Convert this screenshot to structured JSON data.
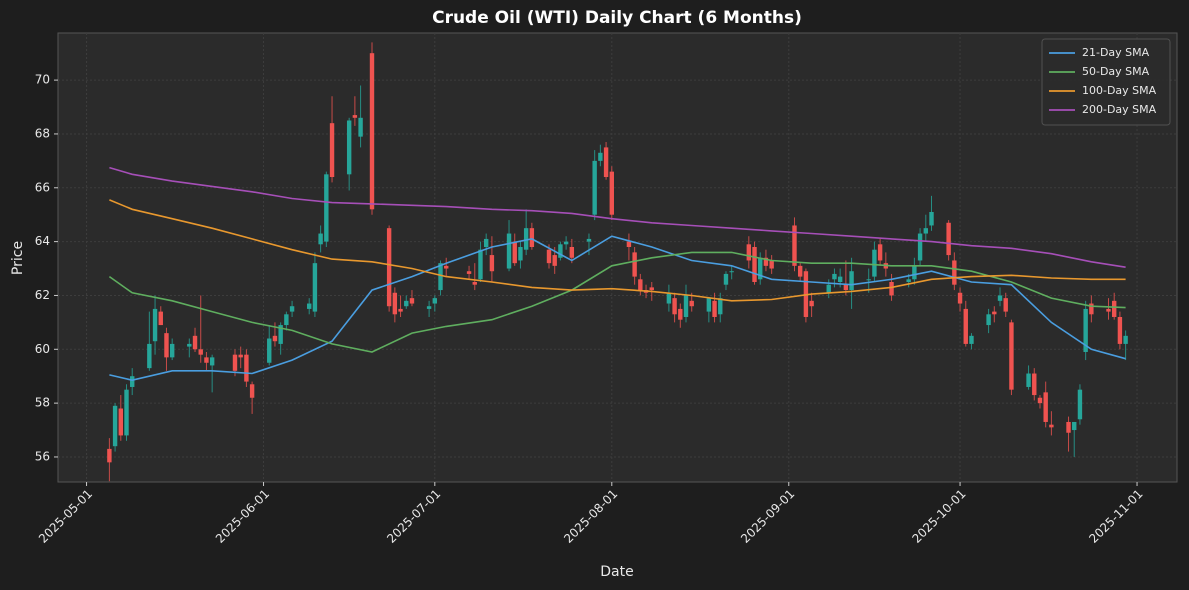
{
  "chart_data": {
    "type": "candlestick",
    "title": "Crude Oil (WTI) Daily Chart (6 Months)",
    "x_label": "Date",
    "y_label": "Price",
    "up_color": "#26a69a",
    "down_color": "#ef5350",
    "grid": true,
    "legend": "upper right",
    "xlim": [
      "2025-04-26",
      "2025-11-08"
    ],
    "xticks": [
      "2025-05-01",
      "2025-06-01",
      "2025-07-01",
      "2025-08-01",
      "2025-09-01",
      "2025-10-01",
      "2025-11-01"
    ],
    "ylim": [
      55.07,
      71.75
    ],
    "yticks": [
      56,
      58,
      60,
      62,
      64,
      66,
      68,
      70
    ],
    "candles": {
      "x": [
        "2025-05-05",
        "2025-05-06",
        "2025-05-07",
        "2025-05-08",
        "2025-05-09",
        "2025-05-12",
        "2025-05-13",
        "2025-05-14",
        "2025-05-15",
        "2025-05-16",
        "2025-05-19",
        "2025-05-20",
        "2025-05-21",
        "2025-05-22",
        "2025-05-23",
        "2025-05-27",
        "2025-05-28",
        "2025-05-29",
        "2025-05-30",
        "2025-06-02",
        "2025-06-03",
        "2025-06-04",
        "2025-06-05",
        "2025-06-06",
        "2025-06-09",
        "2025-06-10",
        "2025-06-11",
        "2025-06-12",
        "2025-06-13",
        "2025-06-16",
        "2025-06-17",
        "2025-06-18",
        "2025-06-20",
        "2025-06-23",
        "2025-06-24",
        "2025-06-25",
        "2025-06-26",
        "2025-06-27",
        "2025-06-30",
        "2025-07-01",
        "2025-07-02",
        "2025-07-03",
        "2025-07-07",
        "2025-07-08",
        "2025-07-09",
        "2025-07-10",
        "2025-07-11",
        "2025-07-14",
        "2025-07-15",
        "2025-07-16",
        "2025-07-17",
        "2025-07-18",
        "2025-07-21",
        "2025-07-22",
        "2025-07-23",
        "2025-07-24",
        "2025-07-25",
        "2025-07-28",
        "2025-07-29",
        "2025-07-30",
        "2025-07-31",
        "2025-08-01",
        "2025-08-04",
        "2025-08-05",
        "2025-08-06",
        "2025-08-07",
        "2025-08-08",
        "2025-08-11",
        "2025-08-12",
        "2025-08-13",
        "2025-08-14",
        "2025-08-15",
        "2025-08-18",
        "2025-08-19",
        "2025-08-20",
        "2025-08-21",
        "2025-08-22",
        "2025-08-25",
        "2025-08-26",
        "2025-08-27",
        "2025-08-28",
        "2025-08-29",
        "2025-09-02",
        "2025-09-03",
        "2025-09-04",
        "2025-09-05",
        "2025-09-08",
        "2025-09-09",
        "2025-09-10",
        "2025-09-11",
        "2025-09-12",
        "2025-09-15",
        "2025-09-16",
        "2025-09-17",
        "2025-09-18",
        "2025-09-19",
        "2025-09-22",
        "2025-09-23",
        "2025-09-24",
        "2025-09-25",
        "2025-09-26",
        "2025-09-29",
        "2025-09-30",
        "2025-10-01",
        "2025-10-02",
        "2025-10-03",
        "2025-10-06",
        "2025-10-07",
        "2025-10-08",
        "2025-10-09",
        "2025-10-10",
        "2025-10-13",
        "2025-10-14",
        "2025-10-15",
        "2025-10-16",
        "2025-10-17",
        "2025-10-20",
        "2025-10-21",
        "2025-10-22",
        "2025-10-23",
        "2025-10-24",
        "2025-10-27",
        "2025-10-28",
        "2025-10-29",
        "2025-10-30"
      ],
      "open": [
        56.3,
        56.4,
        57.8,
        56.8,
        58.6,
        59.3,
        60.3,
        61.4,
        60.6,
        59.7,
        60.1,
        60.5,
        60.0,
        59.7,
        59.4,
        59.8,
        59.8,
        59.8,
        58.7,
        59.5,
        60.5,
        60.2,
        60.9,
        61.4,
        61.5,
        61.4,
        63.9,
        64.0,
        68.4,
        66.5,
        68.7,
        67.9,
        71.0,
        64.5,
        62.1,
        61.5,
        61.6,
        61.9,
        61.5,
        61.7,
        62.2,
        63.1,
        62.9,
        62.5,
        62.6,
        63.8,
        63.5,
        63.0,
        64.0,
        63.3,
        63.7,
        64.5,
        63.7,
        63.5,
        63.4,
        63.9,
        63.8,
        64.0,
        65.0,
        67.0,
        67.5,
        66.6,
        64.0,
        63.6,
        62.6,
        62.2,
        62.3,
        61.7,
        61.9,
        61.5,
        61.2,
        61.8,
        61.4,
        61.8,
        61.3,
        62.4,
        62.9,
        63.9,
        63.8,
        62.6,
        63.4,
        63.3,
        64.6,
        63.1,
        62.9,
        61.8,
        62.1,
        62.6,
        62.5,
        62.4,
        62.2,
        62.6,
        62.7,
        63.9,
        63.2,
        62.5,
        62.5,
        62.6,
        63.3,
        64.3,
        64.6,
        64.7,
        63.3,
        62.1,
        61.5,
        60.2,
        60.9,
        61.4,
        61.8,
        61.9,
        61.0,
        58.6,
        59.1,
        58.2,
        58.4,
        57.2,
        57.3,
        57.0,
        57.4,
        59.9,
        61.7,
        61.5,
        61.8,
        61.2,
        60.2
      ],
      "high": [
        56.7,
        58.0,
        58.3,
        58.7,
        59.3,
        61.4,
        62.0,
        61.6,
        60.8,
        60.4,
        60.4,
        60.8,
        62.0,
        59.9,
        59.8,
        60.0,
        60.1,
        60.0,
        58.8,
        60.9,
        61.0,
        61.0,
        61.4,
        61.8,
        61.9,
        63.6,
        64.6,
        66.6,
        69.4,
        68.6,
        69.4,
        69.8,
        71.4,
        64.6,
        62.3,
        62.0,
        62.0,
        62.2,
        61.8,
        62.0,
        63.3,
        63.4,
        63.1,
        63.2,
        64.0,
        64.3,
        64.2,
        64.8,
        64.3,
        64.0,
        65.2,
        64.7,
        63.9,
        63.8,
        64.0,
        64.2,
        64.1,
        64.3,
        67.4,
        67.6,
        67.7,
        66.8,
        64.3,
        63.8,
        62.8,
        62.4,
        62.5,
        62.4,
        62.1,
        61.7,
        62.4,
        62.1,
        61.9,
        62.1,
        62.1,
        62.9,
        63.1,
        64.2,
        64.0,
        63.6,
        63.7,
        63.5,
        64.9,
        63.2,
        63.0,
        62.1,
        62.6,
        63.0,
        63.0,
        63.3,
        63.4,
        63.0,
        64.0,
        64.1,
        63.6,
        62.8,
        62.8,
        63.4,
        64.5,
        65.0,
        65.7,
        64.8,
        63.6,
        62.3,
        61.8,
        60.6,
        61.5,
        61.6,
        62.3,
        62.1,
        61.1,
        59.4,
        59.3,
        58.3,
        58.8,
        57.7,
        57.5,
        57.3,
        58.7,
        61.8,
        62.0,
        61.9,
        62.1,
        61.4,
        60.7
      ],
      "low": [
        55.1,
        56.2,
        56.6,
        56.6,
        58.3,
        59.2,
        59.8,
        60.9,
        59.2,
        59.6,
        59.7,
        59.9,
        59.5,
        59.2,
        58.4,
        59.0,
        59.3,
        58.6,
        57.6,
        59.4,
        60.1,
        59.8,
        60.7,
        61.2,
        61.3,
        61.2,
        63.6,
        63.8,
        66.2,
        65.9,
        68.3,
        67.5,
        65.0,
        61.4,
        61.0,
        61.2,
        61.5,
        61.6,
        61.2,
        61.4,
        62.0,
        62.7,
        62.6,
        62.2,
        62.5,
        63.5,
        62.5,
        62.9,
        63.1,
        63.0,
        63.5,
        63.7,
        63.0,
        62.8,
        63.3,
        63.7,
        63.2,
        63.5,
        64.8,
        66.8,
        66.3,
        64.8,
        63.3,
        62.4,
        62.0,
        61.9,
        61.8,
        61.4,
        61.0,
        60.8,
        61.0,
        61.4,
        61.0,
        61.0,
        61.0,
        62.2,
        62.6,
        63.0,
        62.4,
        62.4,
        62.9,
        62.8,
        62.9,
        62.5,
        61.0,
        61.2,
        61.9,
        62.3,
        62.3,
        62.0,
        61.5,
        62.1,
        62.5,
        63.1,
        62.7,
        61.8,
        62.3,
        62.4,
        63.1,
        64.0,
        64.4,
        63.3,
        62.2,
        61.4,
        60.1,
        60.0,
        60.6,
        61.0,
        61.6,
        61.2,
        58.3,
        58.5,
        58.1,
        57.8,
        57.1,
        56.8,
        56.2,
        56.0,
        57.2,
        59.6,
        61.0,
        61.1,
        61.1,
        60.0,
        59.6
      ],
      "close": [
        55.8,
        57.9,
        56.8,
        58.5,
        59.0,
        60.2,
        61.5,
        60.9,
        59.7,
        60.2,
        60.2,
        60.0,
        59.8,
        59.5,
        59.7,
        59.2,
        59.7,
        58.8,
        58.2,
        60.4,
        60.3,
        60.9,
        61.3,
        61.6,
        61.7,
        63.2,
        64.3,
        66.5,
        66.4,
        68.5,
        68.6,
        68.6,
        65.2,
        61.6,
        61.3,
        61.4,
        61.8,
        61.7,
        61.6,
        61.9,
        63.2,
        63.0,
        62.8,
        62.4,
        63.7,
        64.1,
        62.9,
        64.3,
        63.2,
        63.8,
        64.5,
        63.8,
        63.2,
        63.1,
        63.9,
        64.0,
        63.4,
        64.1,
        67.0,
        67.3,
        66.4,
        65.0,
        63.8,
        62.7,
        62.2,
        62.1,
        62.2,
        62.1,
        61.3,
        61.1,
        62.0,
        61.6,
        61.9,
        61.2,
        61.9,
        62.8,
        62.9,
        63.3,
        62.5,
        63.4,
        63.1,
        63.0,
        63.1,
        62.7,
        61.2,
        61.6,
        62.4,
        62.8,
        62.7,
        62.2,
        62.9,
        62.6,
        63.7,
        63.3,
        63.0,
        62.0,
        62.6,
        63.1,
        64.3,
        64.5,
        65.1,
        63.5,
        62.4,
        61.7,
        60.2,
        60.5,
        61.3,
        61.3,
        62.0,
        61.4,
        58.5,
        59.1,
        58.3,
        58.0,
        57.3,
        57.1,
        56.9,
        57.3,
        58.5,
        61.5,
        61.3,
        61.4,
        61.2,
        60.2,
        60.5
      ]
    },
    "series": [
      {
        "name": "21-Day SMA",
        "color": "#4a9ee0",
        "x": [
          "2025-05-05",
          "2025-05-09",
          "2025-05-16",
          "2025-05-23",
          "2025-05-30",
          "2025-06-06",
          "2025-06-13",
          "2025-06-20",
          "2025-06-27",
          "2025-07-03",
          "2025-07-11",
          "2025-07-18",
          "2025-07-25",
          "2025-08-01",
          "2025-08-08",
          "2025-08-15",
          "2025-08-22",
          "2025-08-29",
          "2025-09-05",
          "2025-09-12",
          "2025-09-19",
          "2025-09-26",
          "2025-10-03",
          "2025-10-10",
          "2025-10-17",
          "2025-10-24",
          "2025-10-30"
        ],
        "values": [
          59.05,
          58.85,
          59.2,
          59.2,
          59.1,
          59.6,
          60.3,
          62.2,
          62.7,
          63.2,
          63.8,
          64.1,
          63.3,
          64.2,
          63.8,
          63.3,
          63.1,
          62.6,
          62.5,
          62.4,
          62.6,
          62.9,
          62.5,
          62.4,
          61.0,
          60.0,
          59.65
        ]
      },
      {
        "name": "50-Day SMA",
        "color": "#5fae5f",
        "x": [
          "2025-05-05",
          "2025-05-09",
          "2025-05-16",
          "2025-05-23",
          "2025-05-30",
          "2025-06-06",
          "2025-06-13",
          "2025-06-20",
          "2025-06-27",
          "2025-07-03",
          "2025-07-11",
          "2025-07-18",
          "2025-07-25",
          "2025-08-01",
          "2025-08-08",
          "2025-08-15",
          "2025-08-22",
          "2025-08-29",
          "2025-09-05",
          "2025-09-12",
          "2025-09-19",
          "2025-09-26",
          "2025-10-03",
          "2025-10-10",
          "2025-10-17",
          "2025-10-24",
          "2025-10-30"
        ],
        "values": [
          62.7,
          62.1,
          61.8,
          61.4,
          61.0,
          60.7,
          60.2,
          59.9,
          60.6,
          60.85,
          61.1,
          61.6,
          62.2,
          63.1,
          63.4,
          63.6,
          63.6,
          63.3,
          63.2,
          63.2,
          63.1,
          63.1,
          62.9,
          62.5,
          61.9,
          61.6,
          61.55
        ]
      },
      {
        "name": "100-Day SMA",
        "color": "#e8982e",
        "x": [
          "2025-05-05",
          "2025-05-09",
          "2025-05-16",
          "2025-05-23",
          "2025-05-30",
          "2025-06-06",
          "2025-06-13",
          "2025-06-20",
          "2025-06-27",
          "2025-07-03",
          "2025-07-11",
          "2025-07-18",
          "2025-07-25",
          "2025-08-01",
          "2025-08-08",
          "2025-08-15",
          "2025-08-22",
          "2025-08-29",
          "2025-09-05",
          "2025-09-12",
          "2025-09-19",
          "2025-09-26",
          "2025-10-03",
          "2025-10-10",
          "2025-10-17",
          "2025-10-24",
          "2025-10-30"
        ],
        "values": [
          65.55,
          65.2,
          64.85,
          64.5,
          64.1,
          63.7,
          63.35,
          63.25,
          63.0,
          62.7,
          62.5,
          62.3,
          62.2,
          62.25,
          62.15,
          62.0,
          61.8,
          61.85,
          62.05,
          62.15,
          62.3,
          62.6,
          62.7,
          62.75,
          62.65,
          62.6,
          62.6
        ]
      },
      {
        "name": "200-Day SMA",
        "color": "#a64fb8",
        "x": [
          "2025-05-05",
          "2025-05-09",
          "2025-05-16",
          "2025-05-23",
          "2025-05-30",
          "2025-06-06",
          "2025-06-13",
          "2025-06-20",
          "2025-06-27",
          "2025-07-03",
          "2025-07-11",
          "2025-07-18",
          "2025-07-25",
          "2025-08-01",
          "2025-08-08",
          "2025-08-15",
          "2025-08-22",
          "2025-08-29",
          "2025-09-05",
          "2025-09-12",
          "2025-09-19",
          "2025-09-26",
          "2025-10-03",
          "2025-10-10",
          "2025-10-17",
          "2025-10-24",
          "2025-10-30"
        ],
        "values": [
          66.75,
          66.5,
          66.25,
          66.05,
          65.85,
          65.6,
          65.45,
          65.4,
          65.35,
          65.3,
          65.2,
          65.15,
          65.05,
          64.85,
          64.7,
          64.6,
          64.5,
          64.4,
          64.3,
          64.2,
          64.1,
          64.0,
          63.85,
          63.75,
          63.55,
          63.25,
          63.05
        ]
      }
    ]
  }
}
